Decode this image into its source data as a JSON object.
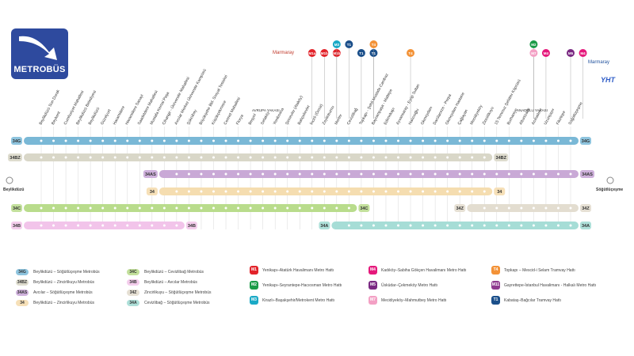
{
  "brand": {
    "logo_text": "METROBÜS",
    "marmaray": "Marmaray",
    "yht": "YHT"
  },
  "side_labels": {
    "europe": "AVRUPA YAKASI",
    "asia": "ANADOLU YAKASI"
  },
  "endpoints": {
    "west": "Beylikdüzü",
    "east": "Söğütlüçeşme"
  },
  "stations": [
    "Beylikdüzü Son Durak",
    "Beykent",
    "Cumhuriyet Mahallesi",
    "Beylikdüzü Belediyesi",
    "Beylikdüzü",
    "Güzelyurt",
    "Haramidere",
    "Haramidere Sanayi",
    "Saadetdere Mahallesi",
    "Mustafa Kemal Paşa",
    "Cihangir - Üniversite Mahallesi",
    "Avcılar Merkez Üniversite Kampüsü",
    "Şükrübey",
    "Büyükşehir Bld. Sosyal Tesisleri",
    "Küçükçekmece",
    "Cennet Mahallesi",
    "Florya",
    "Beşyol",
    "Sefaköy",
    "Yenibosna",
    "Şirinevler (Ataköy)",
    "Bahçelievler",
    "İncirli (Ömür)",
    "Zeytinburnu",
    "Merter",
    "Cevizlibağ",
    "Topkapı - Şehit Mustafa Cambaz",
    "Bayrampaşa - Maltepe",
    "Edirnekapı",
    "Ayvansaray - Eyüp Sultan",
    "Halıcıoğlu",
    "Okmeydanı",
    "Darülaceze - Perpa",
    "Okmeydanı Hastane",
    "Çağlayan",
    "Mecidiyeköy",
    "Zincirlikuyu",
    "15 Temmuz Şehitler Köprüsü",
    "Burhaniye",
    "Altunizade",
    "Acıbadem",
    "Uzunçayır",
    "Fikirtepe",
    "Söğütlüçeşme"
  ],
  "routes": [
    {
      "code": "34G",
      "name": "Beylikdüzü – Söğütlüçeşme Metrobüs",
      "color": "#7ab8d6",
      "badge": "#8ec4de",
      "start": 0,
      "end": 43
    },
    {
      "code": "34BZ",
      "name": "Beylikdüzü – Zincirlikuyu Metrobüs",
      "color": "#d9d7c8",
      "badge": "#dedcce",
      "start": 0,
      "end": 36
    },
    {
      "code": "34AS",
      "name": "Avcılar – Söğütlüçeşme Metrobüs",
      "color": "#c9a9d6",
      "badge": "#cfb1dc",
      "start": 11,
      "end": 43
    },
    {
      "code": "34",
      "name": "Beylikdüzü – Zincirlikuyu Metrobüs",
      "color": "#f5ddb0",
      "badge": "#f6e0b8",
      "start": 11,
      "end": 36
    },
    {
      "code": "34C",
      "name": "Beylikdüzü – Cevizlibağ Metrobüs",
      "color": "#b9dc8c",
      "badge": "#c3e09c",
      "start": 0,
      "end": 25
    },
    {
      "code": "34B",
      "name": "Beylikdüzü – Avcılar Metrobüs",
      "color": "#f2c4ea",
      "badge": "#f4cdec",
      "start": 0,
      "end": 11
    },
    {
      "code": "34Z",
      "name": "Zincirlikuyu – Söğütlüçeşme Metrobüs",
      "color": "#e3ddd0",
      "badge": "#e6e0d4",
      "start": 36,
      "end": 43
    },
    {
      "code": "34A",
      "name": "Cevizlibağ – Söğütlüçeşme Metrobüs",
      "color": "#a6ddd6",
      "badge": "#aee0d9",
      "start": 25,
      "end": 43
    }
  ],
  "rail_lines": [
    {
      "code": "M1",
      "name": "Yenikapı–Atatürk Havalimanı Metro Hattı",
      "color": "#e2232a"
    },
    {
      "code": "M2",
      "name": "Yenikapı–Seyrantepe-Hacıosman Metro Hattı",
      "color": "#1a9b47"
    },
    {
      "code": "M3",
      "name": "Kirazlı–Başakşehir/Metrokent Metro Hattı",
      "color": "#1aa9c6"
    },
    {
      "code": "M4",
      "name": "Kadıköy–Sabiha Gökçen Havalimanı Metro Hattı",
      "color": "#e5187b"
    },
    {
      "code": "M5",
      "name": "Üsküdar–Çekmeköy Metro Hattı",
      "color": "#7a2982"
    },
    {
      "code": "M7",
      "name": "Mecidiyeköy–Mahmutbey Metro Hattı",
      "color": "#f3a0c4"
    },
    {
      "code": "T4",
      "name": "Topkapı – Mescid-i Selam Tramvay Hattı",
      "color": "#f39237"
    },
    {
      "code": "M11",
      "name": "Gayrettepe-İstanbul Havalimanı - Halkalı Metro Hattı",
      "color": "#8e3a8f"
    },
    {
      "code": "T1",
      "name": "Kabataş–Bağcılar Tramvay Hattı",
      "color": "#1b4f8a"
    }
  ],
  "transfer_badges": [
    {
      "text": "M1a",
      "color": "#e2232a",
      "station": 22
    },
    {
      "text": "M1b",
      "color": "#e2232a",
      "station": 23
    },
    {
      "text": "M1b",
      "color": "#e2232a",
      "station": 24
    },
    {
      "text": "M3",
      "color": "#1aa9c6",
      "station": 24,
      "row": 0
    },
    {
      "text": "T1",
      "color": "#1b4f8a",
      "station": 25,
      "row": 0
    },
    {
      "text": "T1",
      "color": "#1b4f8a",
      "station": 26
    },
    {
      "text": "T1",
      "color": "#1b4f8a",
      "station": 27
    },
    {
      "text": "T4",
      "color": "#f39237",
      "station": 27,
      "row": 0
    },
    {
      "text": "T4",
      "color": "#f39237",
      "station": 30
    },
    {
      "text": "M2",
      "color": "#1a9b47",
      "station": 40,
      "row": 0
    },
    {
      "text": "M7",
      "color": "#f3a0c4",
      "station": 40
    },
    {
      "text": "M4",
      "color": "#e5187b",
      "station": 41
    },
    {
      "text": "M5",
      "color": "#7a2982",
      "station": 43
    },
    {
      "text": "M4",
      "color": "#e5187b",
      "station": 44
    }
  ]
}
